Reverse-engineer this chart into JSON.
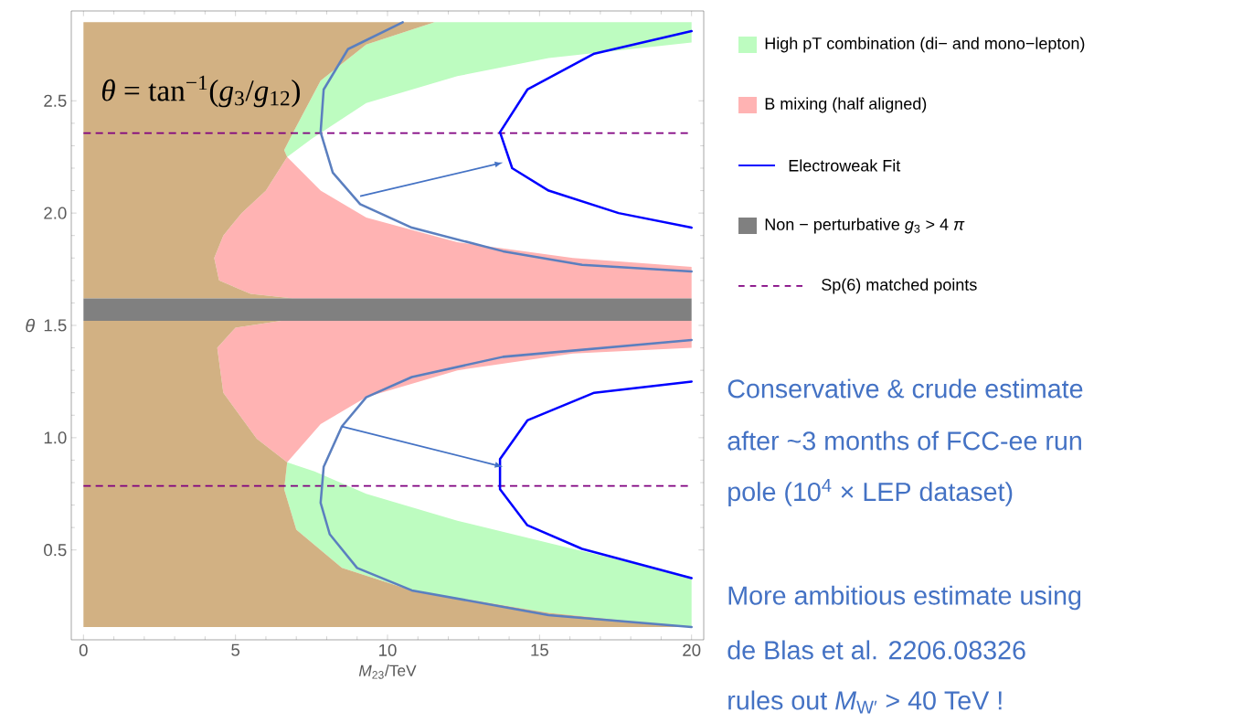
{
  "chart_data": {
    "type": "area",
    "xlabel": "*M*$_{23}$/TeV",
    "ylabel": "*θ*",
    "xlim": [
      -0.4,
      20.4
    ],
    "ylim": [
      0.1,
      2.9
    ],
    "xticks": [
      0,
      5,
      10,
      15,
      20
    ],
    "yticks": [
      {
        "value": 0.5,
        "label": "0.5"
      },
      {
        "value": 1,
        "label": "1.0"
      },
      {
        "value": 1.5,
        "label": "1.5"
      },
      {
        "value": 2,
        "label": "2.0"
      },
      {
        "value": 2.5,
        "label": "2.5"
      }
    ],
    "legend": "right",
    "series": [
      {
        "name": "High pT combination (di− and mono−lepton)",
        "color": "#bdfcc0",
        "x": [
          6.7,
          6.6,
          6.9,
          7.8,
          9.3,
          11.55,
          20,
          20,
          15.3,
          12.3,
          9.3,
          7.5,
          null,
          6.7,
          6.6,
          7.0,
          8.5,
          10.8,
          15.3,
          19.85,
          20,
          20,
          16.1,
          12.3,
          9.3,
          7.6
        ],
        "values": [
          2.25,
          2.28,
          2.36,
          2.59,
          2.75,
          2.85,
          2.85,
          2.76,
          2.69,
          2.61,
          2.49,
          2.33,
          null,
          0.89,
          0.77,
          0.59,
          0.42,
          0.32,
          0.22,
          0.157,
          0.157,
          0.38,
          0.505,
          0.63,
          0.75,
          0.85
        ]
      },
      {
        "name": "B mixing (half aligned)",
        "color": "#ffb3b3",
        "x": [
          6.9,
          5.5,
          4.46,
          4.3,
          4.6,
          5.2,
          6.0,
          6.7,
          7.8,
          9.3,
          12.3,
          16.1,
          20,
          20,
          null,
          6.5,
          20,
          20,
          16.1,
          12.3,
          9.3,
          7.8,
          6.7,
          5.7,
          4.6,
          4.4,
          5.0
        ],
        "values": [
          1.62,
          1.64,
          1.7,
          1.8,
          1.9,
          2.0,
          2.1,
          2.25,
          2.1,
          1.98,
          1.87,
          1.8,
          1.76,
          1.62,
          null,
          1.52,
          1.52,
          1.4,
          1.375,
          1.3,
          1.18,
          1.06,
          0.89,
          0.995,
          1.2,
          1.4,
          1.49
        ]
      },
      {
        "name": "Electroweak Fit",
        "type": "line",
        "color": "#0000ff",
        "line_style": "solid",
        "x": [
          20,
          16.8,
          14.6,
          13.7,
          14.1,
          15.3,
          17.6,
          20,
          null,
          20,
          16.8,
          14.6,
          13.7,
          13.7,
          14.6,
          16.4,
          20
        ],
        "values": [
          2.81,
          2.71,
          2.55,
          2.36,
          2.2,
          2.1,
          2.0,
          1.935,
          null,
          1.25,
          1.2,
          1.077,
          0.905,
          0.77,
          0.61,
          0.505,
          0.375
        ]
      },
      {
        "color": "#d2b183",
        "x": [
          0,
          11.55,
          9.3,
          7.8,
          6.9,
          6.6,
          6.7,
          6.0,
          5.2,
          4.6,
          4.3,
          4.46,
          5.5,
          6.9,
          0,
          null,
          0,
          6.5,
          5.0,
          4.4,
          4.6,
          5.7,
          6.7,
          6.6,
          7.0,
          8.5,
          10.8,
          15.3,
          19.85,
          0
        ],
        "values": [
          2.85,
          2.85,
          2.75,
          2.59,
          2.36,
          2.28,
          2.25,
          2.1,
          2.0,
          1.9,
          1.8,
          1.7,
          1.64,
          1.62,
          1.62,
          null,
          1.52,
          1.52,
          1.49,
          1.4,
          1.2,
          0.995,
          0.89,
          0.77,
          0.59,
          0.42,
          0.32,
          0.22,
          0.157,
          0.157
        ]
      },
      {
        "type": "line",
        "color": "#5b7fbf",
        "line_style": "solid",
        "x": [
          10.5,
          8.7,
          7.9,
          7.8,
          8.2,
          9.1,
          10.8,
          13.8,
          16.4,
          20,
          null,
          20,
          13.8,
          10.8,
          9.3,
          8.5,
          7.9,
          7.8,
          8.1,
          9.0,
          10.8,
          15.3,
          20
        ],
        "values": [
          2.85,
          2.73,
          2.55,
          2.36,
          2.18,
          2.04,
          1.935,
          1.83,
          1.77,
          1.74,
          null,
          1.435,
          1.36,
          1.27,
          1.18,
          1.05,
          0.87,
          0.71,
          0.57,
          0.42,
          0.32,
          0.21,
          0.157
        ]
      }
    ],
    "bands": [
      {
        "axis": "y",
        "from": 1.52,
        "to": 1.62,
        "label": "Non − perturbative *g*$_{3}$ > 4 *π*",
        "color": "#808080"
      }
    ],
    "ref_lines": [
      {
        "axis": "y",
        "value": 2.356,
        "label": "Sp(6) matched points",
        "color": "#800080",
        "line_style": "dashed"
      },
      {
        "axis": "y",
        "value": 0.785,
        "color": "#800080",
        "line_style": "dashed"
      }
    ],
    "annotations": [
      "*θ* = tan$^{−1}$(*g*$_{3}$/*g*$_{12}$)",
      "Conservative & crude estimate",
      "after ~3 months of FCC-ee run",
      "pole (10$^{4}$ × LEP dataset)",
      "More ambitious estimate using",
      "de Blas et al. 2206.08326",
      "rules out *M*$_{W′}$ > 40 TeV !"
    ]
  }
}
